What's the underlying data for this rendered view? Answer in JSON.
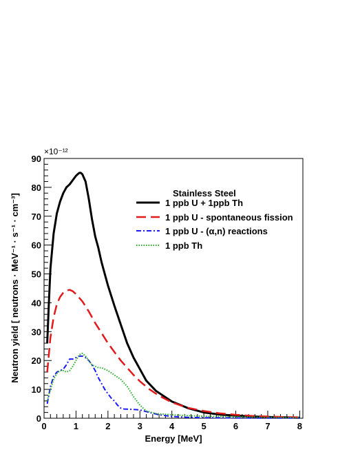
{
  "chart_data": {
    "type": "line",
    "xlabel": "Energy [MeV]",
    "ylabel": "Neutron yield  [ neutrons · MeV⁻¹ · s⁻¹ · cm⁻³]",
    "y_multiplier": "×10⁻¹²",
    "xlim": [
      0,
      8.1
    ],
    "ylim": [
      0,
      90
    ],
    "x_ticks": [
      0,
      1,
      2,
      3,
      4,
      5,
      6,
      7,
      8
    ],
    "y_ticks": [
      0,
      10,
      20,
      30,
      40,
      50,
      60,
      70,
      80,
      90
    ],
    "grid": false,
    "legend_position": "top-right",
    "legend_title": "Stainless Steel",
    "series": [
      {
        "name": "1 ppb U + 1ppb Th",
        "color": "#000000",
        "style": "solid",
        "x": [
          0.1,
          0.15,
          0.2,
          0.3,
          0.4,
          0.5,
          0.6,
          0.7,
          0.8,
          0.9,
          1.0,
          1.1,
          1.15,
          1.2,
          1.3,
          1.4,
          1.5,
          1.6,
          1.7,
          1.8,
          2.0,
          2.2,
          2.4,
          2.6,
          2.8,
          3.0,
          3.2,
          3.5,
          4.0,
          4.5,
          5.0,
          5.5,
          6.0,
          6.5,
          7.0,
          7.5,
          8.0
        ],
        "y": [
          26,
          40,
          52,
          64,
          71,
          75,
          78,
          80,
          81,
          82.5,
          84,
          85,
          85,
          84.5,
          82,
          76,
          69,
          63,
          59,
          54,
          46,
          39,
          32.5,
          26,
          21,
          17,
          13,
          9.5,
          5.8,
          3.5,
          2,
          1.3,
          0.9,
          0.6,
          0.4,
          0.3,
          0.2
        ]
      },
      {
        "name": "1 ppb U - spontaneous fission",
        "color": "#e31a1c",
        "style": "dashed",
        "x": [
          0.1,
          0.2,
          0.3,
          0.4,
          0.5,
          0.6,
          0.7,
          0.8,
          0.9,
          1.0,
          1.2,
          1.4,
          1.6,
          1.8,
          2.0,
          2.2,
          2.4,
          2.6,
          2.8,
          3.0,
          3.3,
          3.6,
          4.0,
          4.5,
          5.0,
          5.5,
          6.0,
          6.5,
          7.0,
          7.5,
          8.0
        ],
        "y": [
          16,
          28,
          35,
          39.5,
          42,
          43.5,
          44.2,
          44.5,
          44,
          43,
          40.5,
          37,
          33,
          29.5,
          26,
          23,
          20,
          17.5,
          15,
          12.8,
          10,
          7.8,
          5.5,
          3.6,
          2.5,
          1.7,
          1.2,
          0.8,
          0.6,
          0.4,
          0.3
        ]
      },
      {
        "name": "1 ppb U - (α,n) reactions",
        "color": "#1a1aff",
        "style": "dashdot",
        "x": [
          0.1,
          0.2,
          0.3,
          0.4,
          0.5,
          0.6,
          0.7,
          0.8,
          0.9,
          1.0,
          1.1,
          1.2,
          1.3,
          1.4,
          1.5,
          1.6,
          1.7,
          1.8,
          1.9,
          2.0,
          2.1,
          2.2,
          2.3,
          2.4,
          2.5,
          2.7,
          3.0,
          3.3,
          3.6,
          4.0,
          4.5,
          5.0,
          5.5,
          6.0,
          7.0,
          8.0
        ],
        "y": [
          5,
          11,
          14.5,
          16,
          16.5,
          17,
          18.5,
          20.5,
          20.5,
          21,
          21.5,
          21.5,
          21,
          20,
          18.5,
          16.5,
          14,
          12,
          10,
          8.5,
          7,
          6,
          4.5,
          3.5,
          3.2,
          3.1,
          2.9,
          2,
          1.2,
          0.6,
          0.3,
          0.2,
          0.15,
          0.1,
          0.05,
          0.05
        ]
      },
      {
        "name": "1 ppb Th",
        "color": "#22aa22",
        "style": "dotted",
        "x": [
          0.1,
          0.2,
          0.3,
          0.4,
          0.5,
          0.6,
          0.7,
          0.8,
          0.9,
          1.0,
          1.1,
          1.2,
          1.3,
          1.4,
          1.5,
          1.6,
          1.7,
          1.8,
          1.9,
          2.0,
          2.2,
          2.4,
          2.6,
          2.8,
          3.0,
          3.2,
          3.5,
          4.0,
          4.5,
          5.0,
          5.5,
          6.0,
          6.5,
          7.0,
          8.0
        ],
        "y": [
          6,
          10,
          13.5,
          15.5,
          16.5,
          16.5,
          16,
          16.5,
          18,
          20,
          22,
          22.5,
          21.5,
          20,
          18.5,
          18,
          17.5,
          17.5,
          17,
          16.5,
          15,
          13.5,
          11,
          7.5,
          4.5,
          2.5,
          1.6,
          1.2,
          0.9,
          0.7,
          0.6,
          0.5,
          0.4,
          0.3,
          0.2
        ]
      }
    ]
  }
}
